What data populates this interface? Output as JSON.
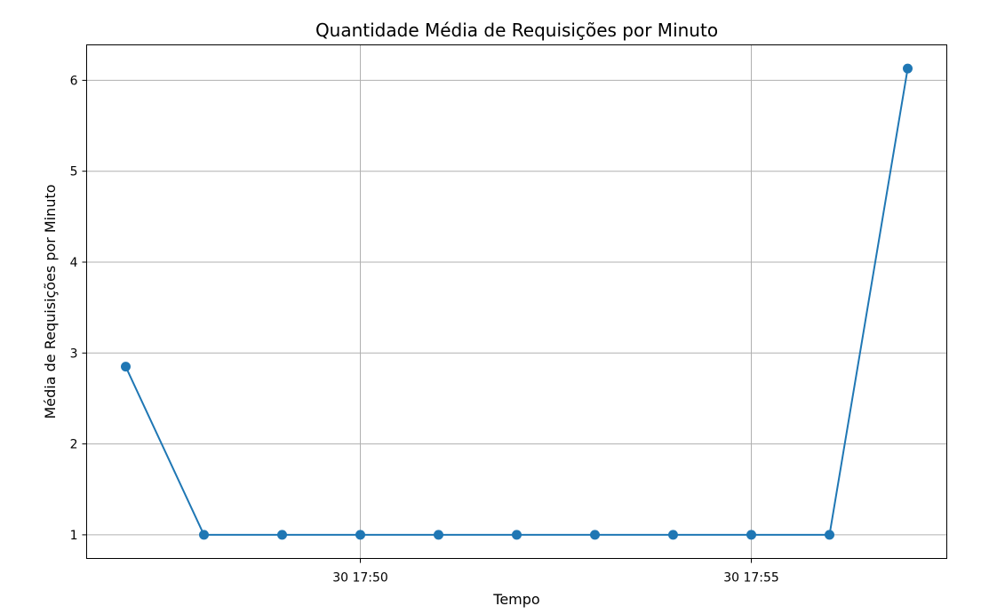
{
  "chart_data": {
    "type": "line",
    "title": "Quantidade Média de Requisições por Minuto",
    "xlabel": "Tempo",
    "ylabel": "Média de Requisições por Minuto",
    "x": [
      "17:47",
      "17:48",
      "17:49",
      "17:50",
      "17:51",
      "17:52",
      "17:53",
      "17:54",
      "17:55",
      "17:56",
      "17:57"
    ],
    "series": [
      {
        "values": [
          2.85,
          1,
          1,
          1,
          1,
          1,
          1,
          1,
          1,
          1,
          6.13
        ],
        "color": "#1f77b4",
        "marker": "circle"
      }
    ],
    "xticks": [
      {
        "at": "17:50",
        "label": "30 17:50"
      },
      {
        "at": "17:55",
        "label": "30 17:55"
      }
    ],
    "yticks": [
      1,
      2,
      3,
      4,
      5,
      6
    ],
    "ylim": [
      0.74,
      6.39
    ],
    "grid": true,
    "colors": {
      "line": "#1f77b4",
      "grid": "#b0b0b0",
      "axes": "#000000"
    }
  }
}
